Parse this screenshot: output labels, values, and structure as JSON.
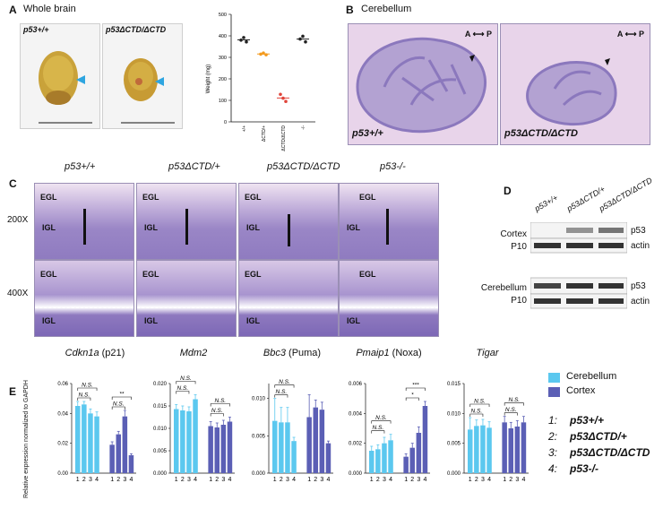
{
  "panels": {
    "A": {
      "letter": "A",
      "title": "Whole brain",
      "photo_labels": [
        "p53+/+",
        "p53ΔCTD/ΔCTD"
      ],
      "chart": {
        "ylabel": "Weight (mg)",
        "yticks": [
          "0",
          "100",
          "200",
          "300",
          "400",
          "500"
        ],
        "categories": [
          "+/+",
          "ΔCTD/+",
          "ΔCTD/ΔCTD",
          "-/-"
        ]
      }
    },
    "B": {
      "letter": "B",
      "title": "Cerebellum",
      "axis_a": "A",
      "axis_p": "P",
      "labels": [
        "p53+/+",
        "p53ΔCTD/ΔCTD"
      ]
    },
    "C": {
      "letter": "C",
      "genotypes": [
        "p53+/+",
        "p53ΔCTD/+",
        "p53ΔCTD/ΔCTD",
        "p53-/-"
      ],
      "magnifications": [
        "200X",
        "400X"
      ],
      "egl": "EGL",
      "igl": "IGL"
    },
    "D": {
      "letter": "D",
      "lanes": [
        "p53+/+",
        "p53ΔCTD/+",
        "p53ΔCTD/ΔCTD"
      ],
      "cortex_label": "Cortex",
      "cerebellum_label": "Cerebellum",
      "age": "P10",
      "bands": [
        "p53",
        "actin"
      ]
    },
    "E": {
      "letter": "E",
      "ylabel": "Relative expression normalized to GAPDH",
      "ns": "N.S.",
      "genes": [
        {
          "name": "Cdkn1a",
          "suffix": " (p21)"
        },
        {
          "name": "Mdm2",
          "suffix": ""
        },
        {
          "name": "Bbc3",
          "suffix": " (Puma)"
        },
        {
          "name": "Pmaip1",
          "suffix": "  (Noxa)"
        },
        {
          "name": "Tigar",
          "suffix": ""
        }
      ],
      "legend": [
        {
          "label": "Cerebellum",
          "color": "#5bc8ef"
        },
        {
          "label": "Cortex",
          "color": "#5b5fb5"
        }
      ],
      "genotype_key": [
        {
          "num": "1:",
          "label": "p53+/+"
        },
        {
          "num": "2:",
          "label": "p53ΔCTD/+"
        },
        {
          "num": "3:",
          "label": "p53ΔCTD/ΔCTD"
        },
        {
          "num": "4:",
          "label": "p53-/-"
        }
      ]
    }
  },
  "chart_data": [
    {
      "type": "scatter",
      "title": "Whole brain",
      "ylabel": "Weight (mg)",
      "ylim": [
        0,
        500
      ],
      "categories": [
        "+/+",
        "ΔCTD/+",
        "ΔCTD/ΔCTD",
        "-/-"
      ],
      "series": [
        {
          "values": [
            [
              380,
              392,
              372
            ],
            [
              315,
              320,
              312
            ],
            [
              128,
              110,
              95
            ],
            [
              385,
              398,
              372
            ]
          ]
        }
      ],
      "colors": [
        "#222222",
        "#f39a1e",
        "#e0443a",
        "#222222"
      ]
    },
    {
      "type": "bar",
      "title": "Cdkn1a (p21)",
      "ylim": [
        0,
        0.06
      ],
      "yticks": [
        "0.00",
        "0.02",
        "0.04",
        "0.06"
      ],
      "categories": [
        "1",
        "2",
        "3",
        "4"
      ],
      "series": [
        {
          "name": "Cerebellum",
          "values": [
            0.045,
            0.046,
            0.04,
            0.038
          ],
          "errors": [
            0.003,
            0.002,
            0.003,
            0.003
          ]
        },
        {
          "name": "Cortex",
          "values": [
            0.019,
            0.026,
            0.038,
            0.012
          ],
          "errors": [
            0.002,
            0.002,
            0.004,
            0.001
          ]
        }
      ],
      "annotations": [
        {
          "series": "Cerebellum",
          "text": "N.S."
        },
        {
          "series": "Cerebellum",
          "text": "N.S."
        },
        {
          "series": "Cortex",
          "text": "N.S."
        },
        {
          "series": "Cortex",
          "text": "**"
        }
      ]
    },
    {
      "type": "bar",
      "title": "Mdm2",
      "ylim": [
        0,
        0.02
      ],
      "yticks": [
        "0.000",
        "0.005",
        "0.010",
        "0.015",
        "0.020"
      ],
      "categories": [
        "1",
        "2",
        "3",
        "4"
      ],
      "series": [
        {
          "name": "Cerebellum",
          "values": [
            0.0143,
            0.014,
            0.0138,
            0.0165
          ],
          "errors": [
            0.001,
            0.001,
            0.001,
            0.001
          ]
        },
        {
          "name": "Cortex",
          "values": [
            0.0105,
            0.0102,
            0.0108,
            0.0115
          ],
          "errors": [
            0.001,
            0.001,
            0.001,
            0.001
          ]
        }
      ],
      "annotations": [
        {
          "series": "Cerebellum",
          "text": "N.S."
        },
        {
          "series": "Cerebellum",
          "text": "N.S."
        },
        {
          "series": "Cortex",
          "text": "N.S."
        },
        {
          "series": "Cortex",
          "text": "N.S."
        }
      ]
    },
    {
      "type": "bar",
      "title": "Bbc3 (Puma)",
      "ylim": [
        0,
        0.012
      ],
      "yticks": [
        "0.000",
        "0.005",
        "0.010"
      ],
      "categories": [
        "1",
        "2",
        "3",
        "4"
      ],
      "series": [
        {
          "name": "Cerebellum",
          "values": [
            0.007,
            0.0068,
            0.0068,
            0.0043
          ],
          "errors": [
            0.003,
            0.002,
            0.002,
            0.0005
          ]
        },
        {
          "name": "Cortex",
          "values": [
            0.0075,
            0.0088,
            0.0085,
            0.004
          ],
          "errors": [
            0.003,
            0.001,
            0.001,
            0.0003
          ]
        }
      ],
      "annotations": [
        {
          "series": "Cerebellum",
          "text": "N.S."
        },
        {
          "series": "Cerebellum",
          "text": "N.S."
        }
      ]
    },
    {
      "type": "bar",
      "title": "Pmaip1 (Noxa)",
      "ylim": [
        0,
        0.006
      ],
      "yticks": [
        "0.000",
        "0.002",
        "0.004",
        "0.006"
      ],
      "categories": [
        "1",
        "2",
        "3",
        "4"
      ],
      "series": [
        {
          "name": "Cerebellum",
          "values": [
            0.0015,
            0.0016,
            0.002,
            0.0022
          ],
          "errors": [
            0.0003,
            0.0003,
            0.0004,
            0.0004
          ]
        },
        {
          "name": "Cortex",
          "values": [
            0.0011,
            0.0017,
            0.0027,
            0.0045
          ],
          "errors": [
            0.0002,
            0.0003,
            0.0004,
            0.0003
          ]
        }
      ],
      "annotations": [
        {
          "series": "Cerebellum",
          "text": "N.S."
        },
        {
          "series": "Cerebellum",
          "text": "N.S."
        },
        {
          "series": "Cortex",
          "text": "*"
        },
        {
          "series": "Cortex",
          "text": "***"
        }
      ]
    },
    {
      "type": "bar",
      "title": "Tigar",
      "ylim": [
        0,
        0.015
      ],
      "yticks": [
        "0.000",
        "0.005",
        "0.010",
        "0.015"
      ],
      "categories": [
        "1",
        "2",
        "3",
        "4"
      ],
      "series": [
        {
          "name": "Cerebellum",
          "values": [
            0.0073,
            0.0079,
            0.008,
            0.0076
          ],
          "errors": [
            0.002,
            0.001,
            0.001,
            0.001
          ]
        },
        {
          "name": "Cortex",
          "values": [
            0.0085,
            0.0075,
            0.0078,
            0.0085
          ],
          "errors": [
            0.001,
            0.001,
            0.001,
            0.001
          ]
        }
      ],
      "annotations": [
        {
          "series": "Cerebellum",
          "text": "N.S."
        },
        {
          "series": "Cerebellum",
          "text": "N.S."
        },
        {
          "series": "Cortex",
          "text": "N.S."
        },
        {
          "series": "Cortex",
          "text": "N.S."
        }
      ]
    }
  ]
}
